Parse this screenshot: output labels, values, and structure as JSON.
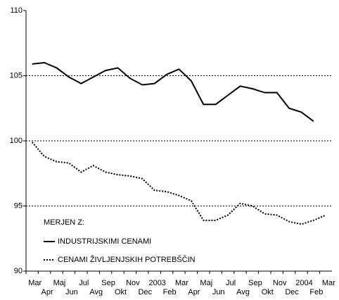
{
  "chart_data": {
    "type": "line",
    "categories": [
      "Mar",
      "Apr",
      "Maj",
      "Jun",
      "Jul",
      "Avg",
      "Sep",
      "Okt",
      "Nov",
      "Dec",
      "2003",
      "Feb",
      "Mar",
      "Apr",
      "Maj",
      "Jun",
      "Jul",
      "Avg",
      "Sep",
      "Okt",
      "Nov",
      "Dec",
      "2004",
      "Feb",
      "Mar"
    ],
    "series": [
      {
        "name": "INDUSTRIJSKIMI CENAMI",
        "color": "#000000",
        "dash": "solid",
        "values": [
          105.9,
          106.0,
          105.6,
          104.9,
          104.4,
          104.9,
          105.4,
          105.6,
          104.8,
          104.3,
          104.4,
          105.1,
          105.5,
          104.6,
          102.8,
          102.8,
          103.5,
          104.2,
          104.0,
          103.7,
          103.7,
          102.5,
          102.2,
          101.5,
          null
        ]
      },
      {
        "name": "CENAMI ŽIVLJENJSKIH POTREBŠČIN",
        "color": "#000000",
        "dash": "dotted",
        "values": [
          99.9,
          98.8,
          98.4,
          98.3,
          97.6,
          98.1,
          97.6,
          97.4,
          97.3,
          97.1,
          96.2,
          96.1,
          95.8,
          95.4,
          93.9,
          93.9,
          94.3,
          95.2,
          95.0,
          94.4,
          94.3,
          93.8,
          93.6,
          93.9,
          94.3
        ]
      }
    ],
    "legend_title": "MERJEN Z:",
    "legend": "lower left",
    "ylim": [
      90,
      110
    ],
    "yticks": [
      90,
      95,
      100,
      105,
      110
    ],
    "grid": true
  }
}
